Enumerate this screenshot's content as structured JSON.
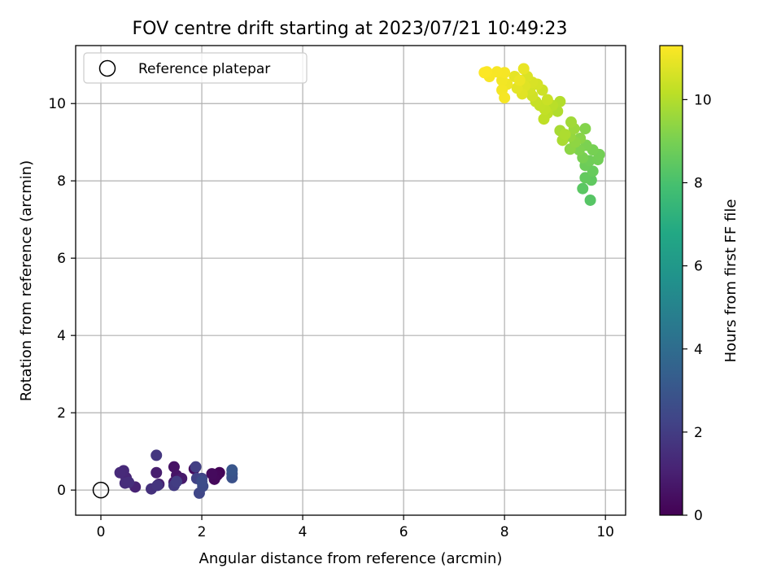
{
  "chart_data": {
    "type": "scatter",
    "title": "FOV centre drift starting at 2023/07/21 10:49:23",
    "xlabel": "Angular distance from reference (arcmin)",
    "ylabel": "Rotation from reference (arcmin)",
    "xlim": [
      -0.5,
      10.4
    ],
    "ylim": [
      -0.65,
      11.5
    ],
    "xticks": [
      0,
      2,
      4,
      6,
      8,
      10
    ],
    "yticks": [
      0,
      2,
      4,
      6,
      8,
      10
    ],
    "grid": true,
    "legend": {
      "placement": "top-left",
      "entries": [
        "Reference platepar"
      ]
    },
    "reference_point": {
      "x": 0,
      "y": 0,
      "label": "Reference platepar"
    },
    "colorbar": {
      "label": "Hours from first FF file",
      "colormap": "viridis",
      "range": [
        0,
        11.3
      ],
      "ticks": [
        0,
        2,
        4,
        6,
        8,
        10
      ]
    },
    "points": [
      {
        "x": 2.35,
        "y": 0.45,
        "c": 0.1
      },
      {
        "x": 2.3,
        "y": 0.38,
        "c": 0.2
      },
      {
        "x": 2.25,
        "y": 0.28,
        "c": 0.25
      },
      {
        "x": 2.2,
        "y": 0.42,
        "c": 0.3
      },
      {
        "x": 1.85,
        "y": 0.55,
        "c": 0.4
      },
      {
        "x": 1.45,
        "y": 0.6,
        "c": 0.55
      },
      {
        "x": 1.5,
        "y": 0.38,
        "c": 0.6
      },
      {
        "x": 1.55,
        "y": 0.28,
        "c": 0.7
      },
      {
        "x": 1.45,
        "y": 0.2,
        "c": 0.75
      },
      {
        "x": 1.6,
        "y": 0.3,
        "c": 0.8
      },
      {
        "x": 1.1,
        "y": 0.45,
        "c": 0.9
      },
      {
        "x": 1.15,
        "y": 0.15,
        "c": 1.0
      },
      {
        "x": 0.68,
        "y": 0.08,
        "c": 1.1
      },
      {
        "x": 0.5,
        "y": 0.32,
        "c": 1.2
      },
      {
        "x": 0.45,
        "y": 0.5,
        "c": 1.3
      },
      {
        "x": 0.38,
        "y": 0.45,
        "c": 1.35
      },
      {
        "x": 0.48,
        "y": 0.18,
        "c": 1.45
      },
      {
        "x": 0.55,
        "y": 0.2,
        "c": 1.5
      },
      {
        "x": 1.0,
        "y": 0.03,
        "c": 1.6
      },
      {
        "x": 1.12,
        "y": 0.12,
        "c": 1.7
      },
      {
        "x": 1.1,
        "y": 0.9,
        "c": 1.8
      },
      {
        "x": 1.45,
        "y": 0.12,
        "c": 1.9
      },
      {
        "x": 1.5,
        "y": 0.22,
        "c": 2.0
      },
      {
        "x": 1.88,
        "y": 0.6,
        "c": 2.1
      },
      {
        "x": 1.9,
        "y": 0.3,
        "c": 2.2
      },
      {
        "x": 2.0,
        "y": 0.3,
        "c": 2.3
      },
      {
        "x": 1.95,
        "y": -0.08,
        "c": 2.4
      },
      {
        "x": 2.02,
        "y": 0.1,
        "c": 2.5
      },
      {
        "x": 2.0,
        "y": 0.22,
        "c": 2.6
      },
      {
        "x": 2.6,
        "y": 0.32,
        "c": 2.8
      },
      {
        "x": 2.6,
        "y": 0.42,
        "c": 2.9
      },
      {
        "x": 2.6,
        "y": 0.52,
        "c": 3.0
      },
      {
        "x": 9.7,
        "y": 7.5,
        "c": 8.3
      },
      {
        "x": 9.55,
        "y": 7.8,
        "c": 8.4
      },
      {
        "x": 9.72,
        "y": 8.02,
        "c": 8.5
      },
      {
        "x": 9.6,
        "y": 8.08,
        "c": 8.55
      },
      {
        "x": 9.75,
        "y": 8.25,
        "c": 8.65
      },
      {
        "x": 9.6,
        "y": 8.4,
        "c": 8.75
      },
      {
        "x": 9.68,
        "y": 8.52,
        "c": 8.8
      },
      {
        "x": 9.85,
        "y": 8.55,
        "c": 8.85
      },
      {
        "x": 9.88,
        "y": 8.68,
        "c": 8.9
      },
      {
        "x": 9.75,
        "y": 8.8,
        "c": 8.95
      },
      {
        "x": 9.55,
        "y": 8.6,
        "c": 9.0
      },
      {
        "x": 9.62,
        "y": 8.92,
        "c": 9.05
      },
      {
        "x": 9.48,
        "y": 8.8,
        "c": 9.1
      },
      {
        "x": 9.6,
        "y": 9.35,
        "c": 9.2
      },
      {
        "x": 9.5,
        "y": 9.1,
        "c": 9.3
      },
      {
        "x": 9.3,
        "y": 8.82,
        "c": 9.35
      },
      {
        "x": 9.4,
        "y": 9.0,
        "c": 9.4
      },
      {
        "x": 9.3,
        "y": 9.15,
        "c": 9.5
      },
      {
        "x": 9.38,
        "y": 9.35,
        "c": 9.6
      },
      {
        "x": 9.32,
        "y": 9.52,
        "c": 9.7
      },
      {
        "x": 9.1,
        "y": 9.3,
        "c": 9.8
      },
      {
        "x": 9.15,
        "y": 9.05,
        "c": 9.85
      },
      {
        "x": 9.2,
        "y": 9.2,
        "c": 9.9
      },
      {
        "x": 9.05,
        "y": 9.8,
        "c": 9.95
      },
      {
        "x": 9.1,
        "y": 10.05,
        "c": 10.0
      },
      {
        "x": 8.95,
        "y": 9.95,
        "c": 10.1
      },
      {
        "x": 8.85,
        "y": 9.75,
        "c": 10.15
      },
      {
        "x": 8.78,
        "y": 9.6,
        "c": 10.2
      },
      {
        "x": 8.8,
        "y": 9.85,
        "c": 10.25
      },
      {
        "x": 8.7,
        "y": 9.95,
        "c": 10.3
      },
      {
        "x": 8.62,
        "y": 10.05,
        "c": 10.35
      },
      {
        "x": 8.85,
        "y": 10.1,
        "c": 10.4
      },
      {
        "x": 8.75,
        "y": 10.35,
        "c": 10.45
      },
      {
        "x": 8.55,
        "y": 10.2,
        "c": 10.5
      },
      {
        "x": 8.5,
        "y": 10.35,
        "c": 10.55
      },
      {
        "x": 8.65,
        "y": 10.5,
        "c": 10.6
      },
      {
        "x": 8.55,
        "y": 10.55,
        "c": 10.65
      },
      {
        "x": 8.45,
        "y": 10.7,
        "c": 10.7
      },
      {
        "x": 8.4,
        "y": 10.45,
        "c": 10.75
      },
      {
        "x": 8.35,
        "y": 10.25,
        "c": 10.8
      },
      {
        "x": 8.25,
        "y": 10.4,
        "c": 10.85
      },
      {
        "x": 8.2,
        "y": 10.7,
        "c": 10.9
      },
      {
        "x": 8.38,
        "y": 10.9,
        "c": 10.95
      },
      {
        "x": 8.3,
        "y": 10.6,
        "c": 11.0
      },
      {
        "x": 8.05,
        "y": 10.5,
        "c": 11.05
      },
      {
        "x": 7.95,
        "y": 10.6,
        "c": 11.1
      },
      {
        "x": 7.95,
        "y": 10.35,
        "c": 11.12
      },
      {
        "x": 8.0,
        "y": 10.15,
        "c": 11.15
      },
      {
        "x": 8.0,
        "y": 10.8,
        "c": 11.18
      },
      {
        "x": 7.85,
        "y": 10.82,
        "c": 11.2
      },
      {
        "x": 7.7,
        "y": 10.7,
        "c": 11.22
      },
      {
        "x": 7.65,
        "y": 10.82,
        "c": 11.25
      },
      {
        "x": 7.6,
        "y": 10.8,
        "c": 11.28
      }
    ]
  }
}
